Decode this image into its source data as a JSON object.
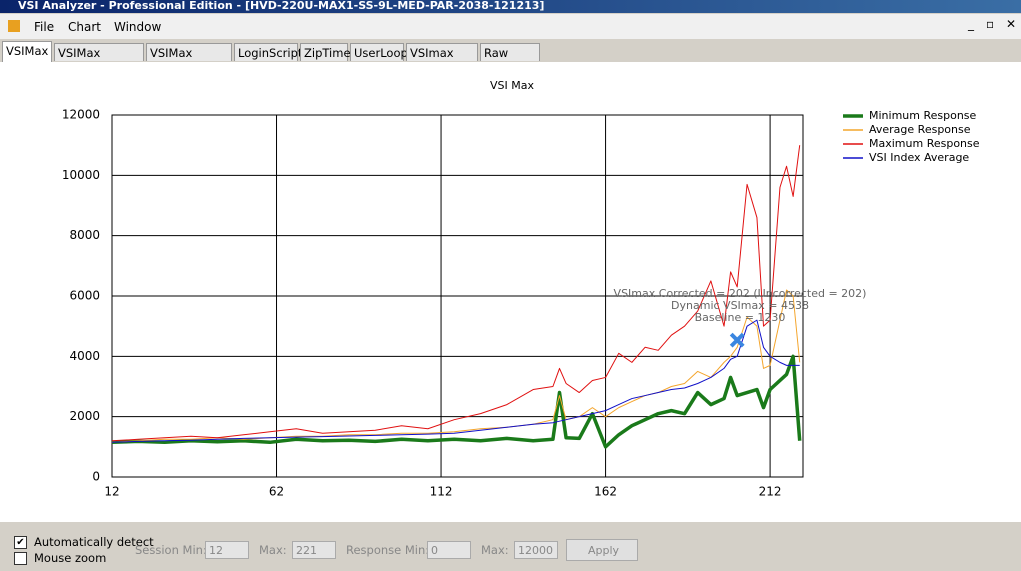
{
  "window": {
    "title": "VSI Analyzer - Professional Edition - [HVD-220U-MAX1-SS-9L-MED-PAR-2038-121213]"
  },
  "menu": [
    "File",
    "Chart",
    "Window"
  ],
  "tabs": [
    "VSIMax",
    "VSIMax Detailed",
    "VSIMax Scatter",
    "LoginScript",
    "ZipTimer",
    "UserLoop",
    "VSImax Data",
    "Raw Data"
  ],
  "chart_data": {
    "type": "line",
    "title": "VSI Max",
    "x": [
      12,
      20,
      28,
      36,
      44,
      52,
      60,
      68,
      76,
      84,
      92,
      100,
      108,
      116,
      124,
      132,
      140,
      146,
      148,
      150,
      154,
      158,
      162,
      166,
      170,
      174,
      178,
      182,
      186,
      190,
      194,
      198,
      200,
      202,
      205,
      208,
      210,
      212,
      215,
      217,
      219,
      221
    ],
    "series": [
      {
        "name": "Minimum Response",
        "color": "#1a7a1a",
        "values": [
          1150,
          1180,
          1150,
          1200,
          1170,
          1200,
          1150,
          1250,
          1200,
          1220,
          1180,
          1250,
          1200,
          1250,
          1200,
          1280,
          1200,
          1250,
          2800,
          1300,
          1280,
          2100,
          1000,
          1400,
          1700,
          1900,
          2100,
          2200,
          2100,
          2800,
          2400,
          2600,
          3300,
          2700,
          2800,
          2900,
          2300,
          2900,
          3200,
          3400,
          4000,
          1200
        ]
      },
      {
        "name": "Average Response",
        "color": "#f4a52c",
        "values": [
          1150,
          1200,
          1250,
          1250,
          1300,
          1250,
          1300,
          1350,
          1350,
          1400,
          1400,
          1450,
          1450,
          1500,
          1600,
          1650,
          1750,
          1900,
          2700,
          1900,
          2000,
          2300,
          2000,
          2300,
          2500,
          2700,
          2800,
          3000,
          3100,
          3500,
          3300,
          3800,
          4000,
          4300,
          5300,
          5000,
          3600,
          3700,
          5200,
          6200,
          6000,
          3800
        ]
      },
      {
        "name": "Maximum Response",
        "color": "#e01010",
        "values": [
          1200,
          1250,
          1300,
          1350,
          1300,
          1400,
          1500,
          1600,
          1450,
          1500,
          1550,
          1700,
          1600,
          1900,
          2100,
          2400,
          2900,
          3000,
          3600,
          3100,
          2800,
          3200,
          3300,
          4100,
          3800,
          4300,
          4200,
          4700,
          5000,
          5500,
          6500,
          5000,
          6800,
          6300,
          9700,
          8600,
          5000,
          5200,
          9600,
          10300,
          9300,
          11000
        ]
      },
      {
        "name": "VSI Index Average",
        "color": "#1010c8",
        "values": [
          1150,
          1180,
          1200,
          1220,
          1250,
          1280,
          1300,
          1320,
          1340,
          1360,
          1380,
          1400,
          1420,
          1450,
          1550,
          1650,
          1750,
          1800,
          1850,
          1900,
          2000,
          2100,
          2200,
          2400,
          2600,
          2700,
          2800,
          2900,
          2950,
          3100,
          3300,
          3600,
          3900,
          4000,
          5000,
          5200,
          4300,
          4000,
          3800,
          3700,
          3700,
          3700
        ]
      }
    ],
    "xlim": [
      12,
      222
    ],
    "xticks": [
      12,
      62,
      112,
      162,
      212
    ],
    "ylim": [
      0,
      12000
    ],
    "yticks": [
      0,
      2000,
      4000,
      6000,
      8000,
      10000,
      12000
    ],
    "grid": true,
    "legend": "right",
    "annotations": [
      "VSImax Corrected = 202 (Uncorrected = 202)",
      "Dynamic VSImax = 4538",
      "Baseline = 1230"
    ],
    "marker": {
      "x": 202,
      "y": 4538,
      "color": "#3a86e0"
    }
  },
  "controls": {
    "auto_detect": {
      "label": "Automatically detect",
      "checked": true
    },
    "mouse_zoom": {
      "label": "Mouse zoom",
      "checked": false
    },
    "session_min": {
      "label": "Session Min:",
      "value": "12"
    },
    "session_max": {
      "label": "Max:",
      "value": "221"
    },
    "response_min": {
      "label": "Response Min:",
      "value": "0"
    },
    "response_max": {
      "label": "Max:",
      "value": "12000"
    },
    "apply": "Apply"
  }
}
